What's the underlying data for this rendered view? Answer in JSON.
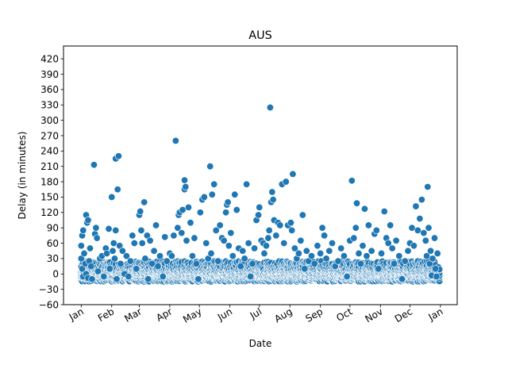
{
  "chart_data": {
    "type": "scatter",
    "title": "AUS",
    "xlabel": "Date",
    "ylabel": "Delay (in minutes)",
    "x_is_date": true,
    "x_tick_labels": [
      "Jan",
      "Feb",
      "Mar",
      "Apr",
      "May",
      "Jun",
      "Jul",
      "Aug",
      "Sep",
      "Oct",
      "Nov",
      "Dec",
      "Jan"
    ],
    "x_tick_dates": [
      "2019-01-01",
      "2019-02-01",
      "2019-03-01",
      "2019-04-01",
      "2019-05-01",
      "2019-06-01",
      "2019-07-01",
      "2019-08-01",
      "2019-09-01",
      "2019-10-01",
      "2019-11-01",
      "2019-12-01",
      "2020-01-01"
    ],
    "xlim": [
      "2018-12-14",
      "2020-01-18"
    ],
    "ylim": [
      -60,
      445
    ],
    "y_ticks": [
      -60,
      -30,
      0,
      30,
      60,
      90,
      120,
      150,
      180,
      210,
      240,
      270,
      300,
      330,
      360,
      390,
      420
    ],
    "y_tick_labels": [
      "−60",
      "−30",
      "0",
      "30",
      "60",
      "90",
      "120",
      "150",
      "180",
      "210",
      "240",
      "270",
      "300",
      "330",
      "360",
      "390",
      "420"
    ],
    "grid": false,
    "legend": "none",
    "marker_color": "#1f77b4",
    "marker_edge_color": "#ffffff",
    "points": [
      {
        "x": "2019-01-01",
        "y": 55
      },
      {
        "x": "2019-01-01",
        "y": 30
      },
      {
        "x": "2019-01-02",
        "y": 75
      },
      {
        "x": "2019-01-02",
        "y": 10
      },
      {
        "x": "2019-01-03",
        "y": 85
      },
      {
        "x": "2019-01-03",
        "y": -5
      },
      {
        "x": "2019-01-04",
        "y": 40
      },
      {
        "x": "2019-01-05",
        "y": 20
      },
      {
        "x": "2019-01-06",
        "y": 115
      },
      {
        "x": "2019-01-06",
        "y": 0
      },
      {
        "x": "2019-01-07",
        "y": 100
      },
      {
        "x": "2019-01-08",
        "y": 105
      },
      {
        "x": "2019-01-08",
        "y": -8
      },
      {
        "x": "2019-01-09",
        "y": 25
      },
      {
        "x": "2019-01-10",
        "y": 50
      },
      {
        "x": "2019-01-11",
        "y": 15
      },
      {
        "x": "2019-01-12",
        "y": -10
      },
      {
        "x": "2019-01-14",
        "y": 213
      },
      {
        "x": "2019-01-15",
        "y": 78
      },
      {
        "x": "2019-01-16",
        "y": 90
      },
      {
        "x": "2019-01-17",
        "y": 70
      },
      {
        "x": "2019-01-18",
        "y": 5
      },
      {
        "x": "2019-01-20",
        "y": 30
      },
      {
        "x": "2019-01-22",
        "y": 35
      },
      {
        "x": "2019-01-24",
        "y": -5
      },
      {
        "x": "2019-01-26",
        "y": 50
      },
      {
        "x": "2019-01-27",
        "y": 40
      },
      {
        "x": "2019-01-29",
        "y": 88
      },
      {
        "x": "2019-01-30",
        "y": 10
      },
      {
        "x": "2019-02-01",
        "y": 150
      },
      {
        "x": "2019-02-02",
        "y": 45
      },
      {
        "x": "2019-02-03",
        "y": 60
      },
      {
        "x": "2019-02-04",
        "y": 30
      },
      {
        "x": "2019-02-05",
        "y": 225
      },
      {
        "x": "2019-02-05",
        "y": 85
      },
      {
        "x": "2019-02-06",
        "y": -10
      },
      {
        "x": "2019-02-07",
        "y": 165
      },
      {
        "x": "2019-02-08",
        "y": 230
      },
      {
        "x": "2019-02-09",
        "y": 55
      },
      {
        "x": "2019-02-10",
        "y": 20
      },
      {
        "x": "2019-02-12",
        "y": 45
      },
      {
        "x": "2019-02-14",
        "y": 0
      },
      {
        "x": "2019-02-16",
        "y": 35
      },
      {
        "x": "2019-02-18",
        "y": -5
      },
      {
        "x": "2019-02-20",
        "y": 25
      },
      {
        "x": "2019-02-22",
        "y": 75
      },
      {
        "x": "2019-02-24",
        "y": 60
      },
      {
        "x": "2019-02-26",
        "y": 10
      },
      {
        "x": "2019-03-01",
        "y": 115
      },
      {
        "x": "2019-03-02",
        "y": 122
      },
      {
        "x": "2019-03-03",
        "y": 85
      },
      {
        "x": "2019-03-04",
        "y": 60
      },
      {
        "x": "2019-03-06",
        "y": 140
      },
      {
        "x": "2019-03-07",
        "y": 30
      },
      {
        "x": "2019-03-09",
        "y": 75
      },
      {
        "x": "2019-03-10",
        "y": -10
      },
      {
        "x": "2019-03-12",
        "y": 65
      },
      {
        "x": "2019-03-14",
        "y": 20
      },
      {
        "x": "2019-03-16",
        "y": 45
      },
      {
        "x": "2019-03-18",
        "y": 95
      },
      {
        "x": "2019-03-20",
        "y": 15
      },
      {
        "x": "2019-03-22",
        "y": 35
      },
      {
        "x": "2019-03-25",
        "y": -5
      },
      {
        "x": "2019-03-27",
        "y": 72
      },
      {
        "x": "2019-03-29",
        "y": 25
      },
      {
        "x": "2019-04-01",
        "y": 40
      },
      {
        "x": "2019-04-03",
        "y": 35
      },
      {
        "x": "2019-04-05",
        "y": 75
      },
      {
        "x": "2019-04-07",
        "y": 260
      },
      {
        "x": "2019-04-09",
        "y": 90
      },
      {
        "x": "2019-04-10",
        "y": 115
      },
      {
        "x": "2019-04-11",
        "y": 120
      },
      {
        "x": "2019-04-13",
        "y": 80
      },
      {
        "x": "2019-04-14",
        "y": 125
      },
      {
        "x": "2019-04-16",
        "y": 165
      },
      {
        "x": "2019-04-16",
        "y": 183
      },
      {
        "x": "2019-04-17",
        "y": 170
      },
      {
        "x": "2019-04-18",
        "y": 65
      },
      {
        "x": "2019-04-20",
        "y": 130
      },
      {
        "x": "2019-04-22",
        "y": 100
      },
      {
        "x": "2019-04-24",
        "y": 35
      },
      {
        "x": "2019-04-26",
        "y": 70
      },
      {
        "x": "2019-04-28",
        "y": 20
      },
      {
        "x": "2019-04-30",
        "y": -10
      },
      {
        "x": "2019-05-02",
        "y": 120
      },
      {
        "x": "2019-05-04",
        "y": 145
      },
      {
        "x": "2019-05-06",
        "y": 150
      },
      {
        "x": "2019-05-08",
        "y": 60
      },
      {
        "x": "2019-05-10",
        "y": 30
      },
      {
        "x": "2019-05-12",
        "y": 210
      },
      {
        "x": "2019-05-13",
        "y": 40
      },
      {
        "x": "2019-05-14",
        "y": 155
      },
      {
        "x": "2019-05-16",
        "y": 175
      },
      {
        "x": "2019-05-18",
        "y": 85
      },
      {
        "x": "2019-05-20",
        "y": 25
      },
      {
        "x": "2019-05-22",
        "y": 95
      },
      {
        "x": "2019-05-24",
        "y": 70
      },
      {
        "x": "2019-05-26",
        "y": 65
      },
      {
        "x": "2019-05-28",
        "y": 120
      },
      {
        "x": "2019-05-29",
        "y": 135
      },
      {
        "x": "2019-05-30",
        "y": 140
      },
      {
        "x": "2019-05-31",
        "y": 55
      },
      {
        "x": "2019-06-02",
        "y": 80
      },
      {
        "x": "2019-06-04",
        "y": 35
      },
      {
        "x": "2019-06-06",
        "y": 155
      },
      {
        "x": "2019-06-08",
        "y": 125
      },
      {
        "x": "2019-06-10",
        "y": 50
      },
      {
        "x": "2019-06-12",
        "y": 15
      },
      {
        "x": "2019-06-14",
        "y": 45
      },
      {
        "x": "2019-06-16",
        "y": 30
      },
      {
        "x": "2019-06-18",
        "y": 175
      },
      {
        "x": "2019-06-20",
        "y": 60
      },
      {
        "x": "2019-06-22",
        "y": -5
      },
      {
        "x": "2019-06-24",
        "y": 20
      },
      {
        "x": "2019-06-26",
        "y": 50
      },
      {
        "x": "2019-06-28",
        "y": 105
      },
      {
        "x": "2019-06-30",
        "y": 115
      },
      {
        "x": "2019-07-01",
        "y": 130
      },
      {
        "x": "2019-07-03",
        "y": 65
      },
      {
        "x": "2019-07-05",
        "y": 60
      },
      {
        "x": "2019-07-06",
        "y": 40
      },
      {
        "x": "2019-07-08",
        "y": 55
      },
      {
        "x": "2019-07-10",
        "y": 70
      },
      {
        "x": "2019-07-11",
        "y": 85
      },
      {
        "x": "2019-07-12",
        "y": 325
      },
      {
        "x": "2019-07-13",
        "y": 140
      },
      {
        "x": "2019-07-14",
        "y": 160
      },
      {
        "x": "2019-07-15",
        "y": 145
      },
      {
        "x": "2019-07-16",
        "y": 105
      },
      {
        "x": "2019-07-18",
        "y": 75
      },
      {
        "x": "2019-07-20",
        "y": 100
      },
      {
        "x": "2019-07-22",
        "y": 95
      },
      {
        "x": "2019-07-24",
        "y": 175
      },
      {
        "x": "2019-07-26",
        "y": 60
      },
      {
        "x": "2019-07-28",
        "y": 180
      },
      {
        "x": "2019-07-30",
        "y": 95
      },
      {
        "x": "2019-08-02",
        "y": 100
      },
      {
        "x": "2019-08-03",
        "y": 85
      },
      {
        "x": "2019-08-04",
        "y": 195
      },
      {
        "x": "2019-08-06",
        "y": 50
      },
      {
        "x": "2019-08-08",
        "y": 30
      },
      {
        "x": "2019-08-10",
        "y": 40
      },
      {
        "x": "2019-08-12",
        "y": 65
      },
      {
        "x": "2019-08-14",
        "y": 115
      },
      {
        "x": "2019-08-16",
        "y": 10
      },
      {
        "x": "2019-08-18",
        "y": 45
      },
      {
        "x": "2019-08-20",
        "y": 25
      },
      {
        "x": "2019-08-23",
        "y": 35
      },
      {
        "x": "2019-08-26",
        "y": 20
      },
      {
        "x": "2019-08-29",
        "y": 55
      },
      {
        "x": "2019-09-01",
        "y": 40
      },
      {
        "x": "2019-09-03",
        "y": 90
      },
      {
        "x": "2019-09-05",
        "y": 75
      },
      {
        "x": "2019-09-07",
        "y": 30
      },
      {
        "x": "2019-09-10",
        "y": 45
      },
      {
        "x": "2019-09-13",
        "y": 60
      },
      {
        "x": "2019-09-16",
        "y": 15
      },
      {
        "x": "2019-09-19",
        "y": 25
      },
      {
        "x": "2019-09-22",
        "y": 50
      },
      {
        "x": "2019-09-25",
        "y": 35
      },
      {
        "x": "2019-09-28",
        "y": -5
      },
      {
        "x": "2019-10-01",
        "y": 65
      },
      {
        "x": "2019-10-03",
        "y": 182
      },
      {
        "x": "2019-10-05",
        "y": 70
      },
      {
        "x": "2019-10-07",
        "y": 90
      },
      {
        "x": "2019-10-08",
        "y": 138
      },
      {
        "x": "2019-10-10",
        "y": 40
      },
      {
        "x": "2019-10-12",
        "y": 20
      },
      {
        "x": "2019-10-14",
        "y": 55
      },
      {
        "x": "2019-10-16",
        "y": 127
      },
      {
        "x": "2019-10-18",
        "y": 35
      },
      {
        "x": "2019-10-20",
        "y": 95
      },
      {
        "x": "2019-10-23",
        "y": 45
      },
      {
        "x": "2019-10-26",
        "y": 78
      },
      {
        "x": "2019-10-28",
        "y": 85
      },
      {
        "x": "2019-10-30",
        "y": 10
      },
      {
        "x": "2019-11-02",
        "y": 40
      },
      {
        "x": "2019-11-05",
        "y": 122
      },
      {
        "x": "2019-11-07",
        "y": 70
      },
      {
        "x": "2019-11-09",
        "y": 60
      },
      {
        "x": "2019-11-11",
        "y": 95
      },
      {
        "x": "2019-11-13",
        "y": 50
      },
      {
        "x": "2019-11-15",
        "y": 20
      },
      {
        "x": "2019-11-17",
        "y": 65
      },
      {
        "x": "2019-11-20",
        "y": 35
      },
      {
        "x": "2019-11-23",
        "y": -10
      },
      {
        "x": "2019-11-26",
        "y": 25
      },
      {
        "x": "2019-11-29",
        "y": 45
      },
      {
        "x": "2019-12-01",
        "y": 60
      },
      {
        "x": "2019-12-03",
        "y": 90
      },
      {
        "x": "2019-12-05",
        "y": 55
      },
      {
        "x": "2019-12-07",
        "y": 132
      },
      {
        "x": "2019-12-09",
        "y": 85
      },
      {
        "x": "2019-12-11",
        "y": 108
      },
      {
        "x": "2019-12-13",
        "y": 145
      },
      {
        "x": "2019-12-15",
        "y": 80
      },
      {
        "x": "2019-12-17",
        "y": 65
      },
      {
        "x": "2019-12-18",
        "y": 35
      },
      {
        "x": "2019-12-19",
        "y": 170
      },
      {
        "x": "2019-12-20",
        "y": 90
      },
      {
        "x": "2019-12-21",
        "y": 20
      },
      {
        "x": "2019-12-22",
        "y": 45
      },
      {
        "x": "2019-12-23",
        "y": -3
      },
      {
        "x": "2019-12-24",
        "y": 30
      },
      {
        "x": "2019-12-26",
        "y": 70
      },
      {
        "x": "2019-12-27",
        "y": 10
      },
      {
        "x": "2019-12-28",
        "y": -5
      },
      {
        "x": "2019-12-29",
        "y": 40
      }
    ],
    "dense_band": {
      "note": "many overlapping points between about -15 and 30 minutes for every day of the year",
      "start": "2019-01-01",
      "end": "2019-12-31",
      "values": [
        -12,
        -8,
        -5,
        -3,
        0,
        3,
        6,
        10,
        15,
        22
      ]
    }
  }
}
